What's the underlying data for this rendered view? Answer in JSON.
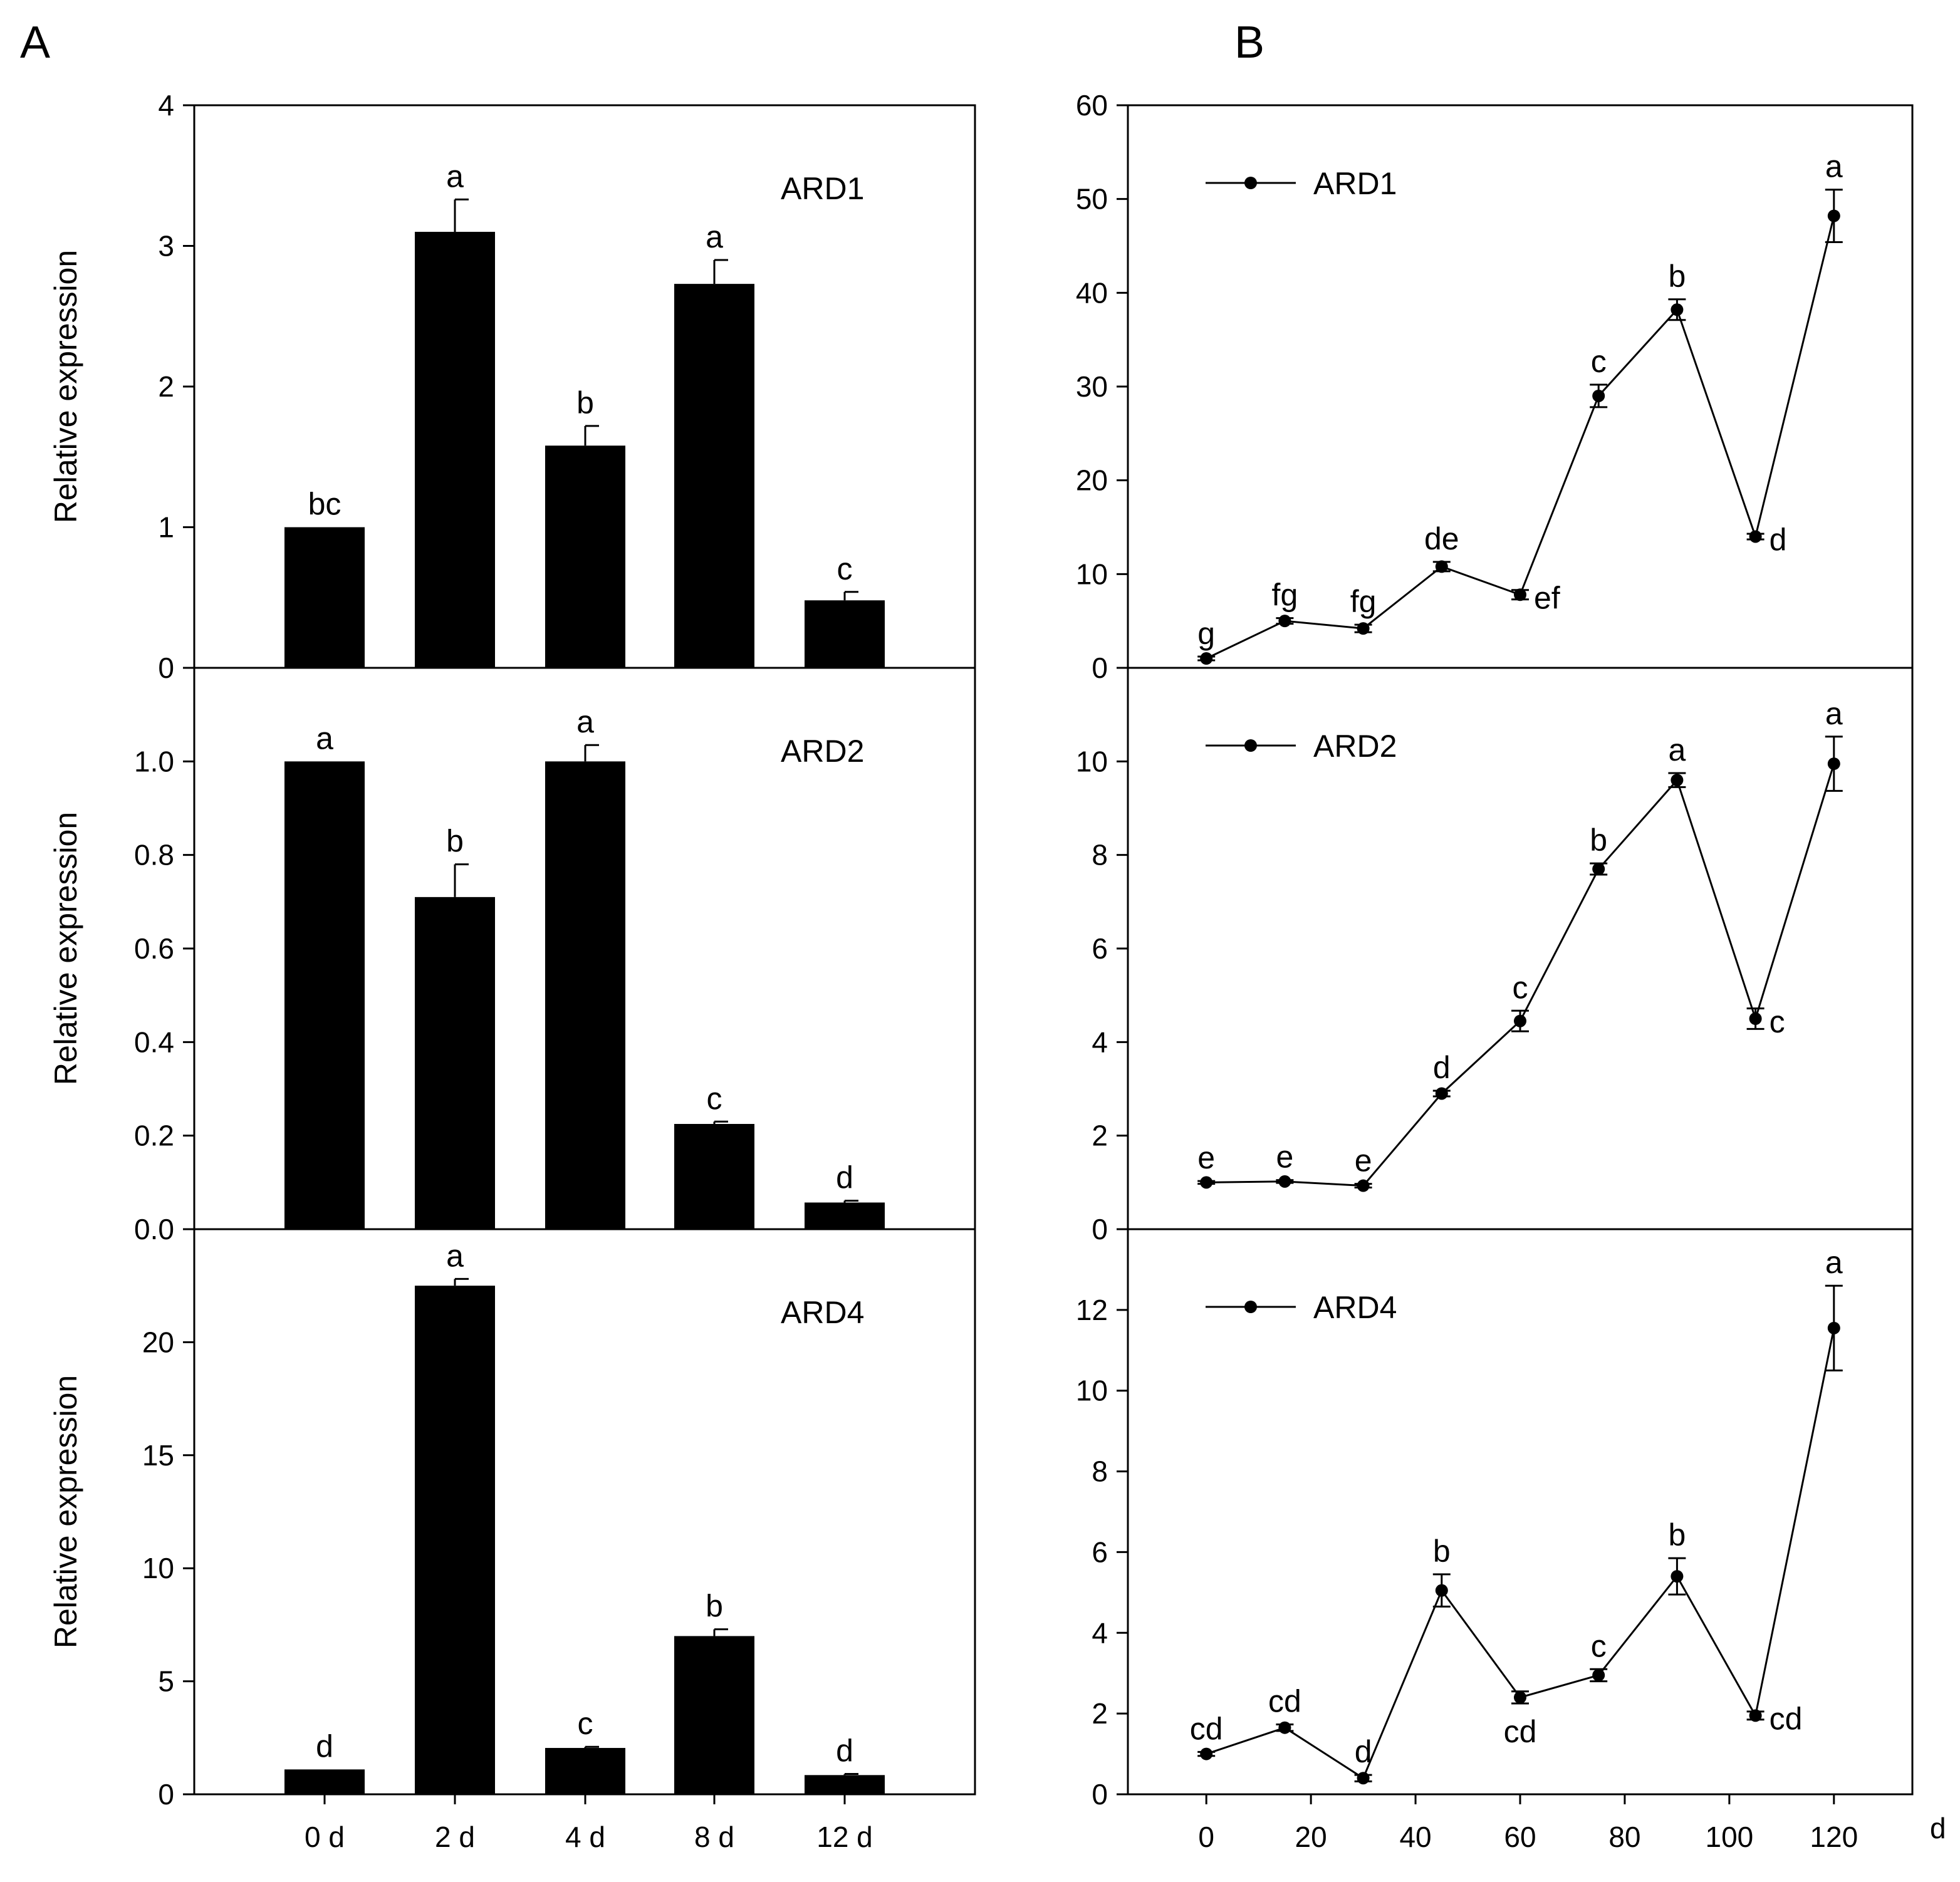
{
  "figure": {
    "panel_labels": [
      "A",
      "B"
    ],
    "color": "#000000"
  },
  "chart_data": [
    {
      "id": "A-ARD1",
      "type": "bar",
      "panel": "A",
      "gene": "ARD1",
      "ylabel": "Relative expression",
      "categories": [
        "0 d",
        "2 d",
        "4 d",
        "8 d",
        "12 d"
      ],
      "values": [
        1.0,
        3.1,
        1.58,
        2.73,
        0.48
      ],
      "errors": [
        0.0,
        0.23,
        0.14,
        0.17,
        0.06
      ],
      "letters": [
        "bc",
        "a",
        "b",
        "a",
        "c"
      ],
      "ylim": [
        0,
        4
      ],
      "yticks": [
        "0",
        "1",
        "2",
        "3",
        "4"
      ]
    },
    {
      "id": "A-ARD2",
      "type": "bar",
      "panel": "A",
      "gene": "ARD2",
      "ylabel": "Relative expression",
      "categories": [
        "0 d",
        "2 d",
        "4 d",
        "8 d",
        "12 d"
      ],
      "values": [
        1.0,
        0.71,
        1.0,
        0.225,
        0.057
      ],
      "errors": [
        0.0,
        0.07,
        0.035,
        0.005,
        0.004
      ],
      "letters": [
        "a",
        "b",
        "a",
        "c",
        "d"
      ],
      "ylim": [
        0,
        1.2
      ],
      "yticks": [
        "0.0",
        "0.2",
        "0.4",
        "0.6",
        "0.8",
        "1.0"
      ]
    },
    {
      "id": "A-ARD4",
      "type": "bar",
      "panel": "A",
      "gene": "ARD4",
      "ylabel": "Relative expression",
      "categories": [
        "0 d",
        "2 d",
        "4 d",
        "8 d",
        "12 d"
      ],
      "values": [
        1.1,
        22.5,
        2.05,
        7.0,
        0.85
      ],
      "errors": [
        0.0,
        0.3,
        0.05,
        0.3,
        0.05
      ],
      "letters": [
        "d",
        "a",
        "c",
        "b",
        "d"
      ],
      "ylim": [
        0,
        25
      ],
      "yticks": [
        "0",
        "5",
        "10",
        "15",
        "20"
      ],
      "xticks": [
        "0 d",
        "2 d",
        "4 d",
        "8 d",
        "12 d"
      ]
    },
    {
      "id": "B-ARD1",
      "type": "line",
      "panel": "B",
      "gene": "ARD1",
      "legend": "ARD1",
      "legend_position": "top-left",
      "x": [
        0,
        15,
        30,
        45,
        60,
        75,
        90,
        105,
        120
      ],
      "y": [
        1,
        5,
        4.2,
        10.8,
        7.8,
        29,
        38.2,
        14,
        48.2
      ],
      "errors": [
        0.2,
        0.3,
        0.4,
        0.5,
        0.5,
        1.2,
        1.1,
        0.3,
        2.8
      ],
      "letters": [
        "g",
        "fg",
        "fg",
        "de",
        "ef",
        "c",
        "b",
        "d",
        "a"
      ],
      "letter_pos": [
        "above",
        "above",
        "above",
        "above",
        "right",
        "above",
        "above",
        "right",
        "above"
      ],
      "xlim": [
        -15,
        135
      ],
      "ylim": [
        0,
        60
      ],
      "yticks": [
        "0",
        "10",
        "20",
        "30",
        "40",
        "50",
        "60"
      ]
    },
    {
      "id": "B-ARD2",
      "type": "line",
      "panel": "B",
      "gene": "ARD2",
      "legend": "ARD2",
      "legend_position": "top-left",
      "x": [
        0,
        15,
        30,
        45,
        60,
        75,
        90,
        105,
        120
      ],
      "y": [
        1.0,
        1.02,
        0.93,
        2.9,
        4.45,
        7.7,
        9.6,
        4.5,
        9.95
      ],
      "errors": [
        0.03,
        0.03,
        0.04,
        0.06,
        0.22,
        0.12,
        0.15,
        0.22,
        0.58
      ],
      "letters": [
        "e",
        "e",
        "e",
        "d",
        "c",
        "b",
        "a",
        "c",
        "a"
      ],
      "letter_pos": [
        "above",
        "above",
        "above",
        "above",
        "above",
        "above",
        "above",
        "right",
        "above"
      ],
      "xlim": [
        -15,
        135
      ],
      "ylim": [
        0,
        12
      ],
      "yticks": [
        "0",
        "2",
        "4",
        "6",
        "8",
        "10"
      ]
    },
    {
      "id": "B-ARD4",
      "type": "line",
      "panel": "B",
      "gene": "ARD4",
      "legend": "ARD4",
      "legend_position": "top-left",
      "x": [
        0,
        15,
        30,
        45,
        60,
        75,
        90,
        105,
        120
      ],
      "y": [
        1.0,
        1.65,
        0.4,
        5.05,
        2.4,
        2.95,
        5.4,
        1.95,
        11.55
      ],
      "errors": [
        0.05,
        0.08,
        0.08,
        0.4,
        0.15,
        0.15,
        0.45,
        0.1,
        1.05
      ],
      "letters": [
        "cd",
        "cd",
        "d",
        "b",
        "cd",
        "c",
        "b",
        "cd",
        "a"
      ],
      "letter_pos": [
        "above",
        "above",
        "above",
        "above",
        "below",
        "above",
        "above",
        "right",
        "above"
      ],
      "xlim": [
        -15,
        135
      ],
      "ylim": [
        0,
        14
      ],
      "yticks": [
        "0",
        "2",
        "4",
        "6",
        "8",
        "10",
        "12"
      ],
      "xticks": [
        "0",
        "20",
        "40",
        "60",
        "80",
        "100",
        "120"
      ],
      "xlabel": "d"
    }
  ]
}
